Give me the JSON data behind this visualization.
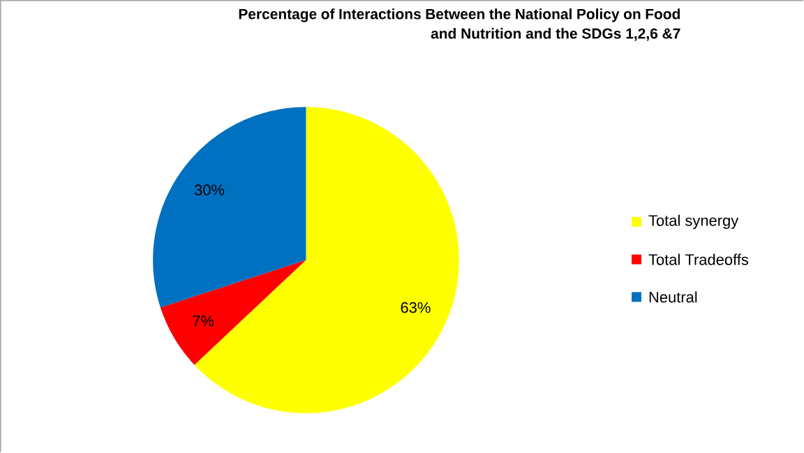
{
  "chart_data": {
    "type": "pie",
    "title": "Percentage of Interactions Between the National Policy on Food and Nutrition and the SDGs 1,2,6 &7",
    "categories": [
      "Total synergy",
      "Total Tradeoffs",
      "Neutral"
    ],
    "values": [
      63,
      7,
      30
    ],
    "colors": [
      "#ffff00",
      "#ff0000",
      "#0070c0"
    ],
    "value_labels": [
      "63%",
      "7%",
      "30%"
    ],
    "legend": "right"
  }
}
